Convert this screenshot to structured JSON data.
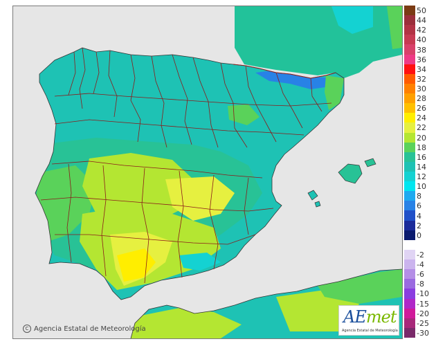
{
  "credit_text": "Agencia Estatal de Meteorología",
  "logo": {
    "word_a": "AE",
    "word_b": "met",
    "subtitle": "Agencia Estatal de Meteorología"
  },
  "colors": {
    "sea": "#e6e6e6",
    "borders": "#8b1a1a",
    "coast": "#333333"
  },
  "legend": [
    {
      "label": "50",
      "color": "#7b3b14"
    },
    {
      "label": "44",
      "color": "#9b2f3a"
    },
    {
      "label": "42",
      "color": "#b23344"
    },
    {
      "label": "40",
      "color": "#c73a52"
    },
    {
      "label": "38",
      "color": "#d8416a"
    },
    {
      "label": "36",
      "color": "#ee3a86"
    },
    {
      "label": "34",
      "color": "#ff1010"
    },
    {
      "label": "32",
      "color": "#ff5a00"
    },
    {
      "label": "30",
      "color": "#ff8000"
    },
    {
      "label": "28",
      "color": "#ffa000"
    },
    {
      "label": "26",
      "color": "#ffc000"
    },
    {
      "label": "24",
      "color": "#ffee00"
    },
    {
      "label": "22",
      "color": "#e6f040"
    },
    {
      "label": "20",
      "color": "#b4e632"
    },
    {
      "label": "18",
      "color": "#5ad25a"
    },
    {
      "label": "16",
      "color": "#28c296"
    },
    {
      "label": "14",
      "color": "#1ec2b4"
    },
    {
      "label": "12",
      "color": "#14d2d2"
    },
    {
      "label": "10",
      "color": "#00e6f0"
    },
    {
      "label": "8",
      "color": "#1eaaf0"
    },
    {
      "label": "6",
      "color": "#2882e6"
    },
    {
      "label": "4",
      "color": "#2050c8"
    },
    {
      "label": "2",
      "color": "#1a2a9a"
    },
    {
      "label": "0",
      "color": "#0a1a6e"
    },
    {
      "label": "",
      "color": "#ffffff"
    },
    {
      "label": "-2",
      "color": "#e0d4f4"
    },
    {
      "label": "-4",
      "color": "#cbb4ee"
    },
    {
      "label": "-6",
      "color": "#b48ee6"
    },
    {
      "label": "-8",
      "color": "#9a6ae0"
    },
    {
      "label": "-10",
      "color": "#8a3ee0"
    },
    {
      "label": "-15",
      "color": "#b028c8"
    },
    {
      "label": "-20",
      "color": "#d01a9a"
    },
    {
      "label": "-25",
      "color": "#a8287a"
    },
    {
      "label": "-30",
      "color": "#7a2a6a"
    }
  ]
}
